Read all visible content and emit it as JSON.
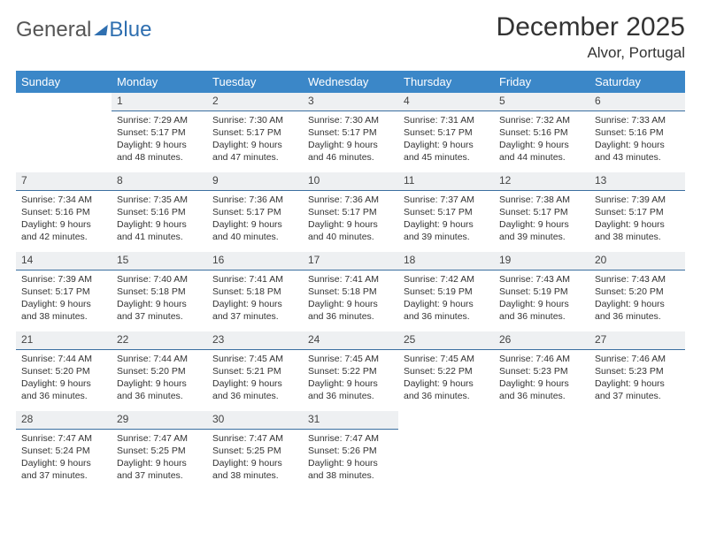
{
  "brand": {
    "part1": "General",
    "part2": "Blue"
  },
  "title": "December 2025",
  "location": "Alvor, Portugal",
  "colors": {
    "header_bg": "#3b87c8",
    "header_text": "#ffffff",
    "daynum_bg": "#eef0f2",
    "daynum_border": "#3b6fa0",
    "body_text": "#333333",
    "brand_gray": "#555555",
    "brand_blue": "#2f6fb0"
  },
  "weekdays": [
    "Sunday",
    "Monday",
    "Tuesday",
    "Wednesday",
    "Thursday",
    "Friday",
    "Saturday"
  ],
  "weeks": [
    {
      "nums": [
        "",
        "1",
        "2",
        "3",
        "4",
        "5",
        "6"
      ],
      "cells": [
        "",
        "Sunrise: 7:29 AM\nSunset: 5:17 PM\nDaylight: 9 hours and 48 minutes.",
        "Sunrise: 7:30 AM\nSunset: 5:17 PM\nDaylight: 9 hours and 47 minutes.",
        "Sunrise: 7:30 AM\nSunset: 5:17 PM\nDaylight: 9 hours and 46 minutes.",
        "Sunrise: 7:31 AM\nSunset: 5:17 PM\nDaylight: 9 hours and 45 minutes.",
        "Sunrise: 7:32 AM\nSunset: 5:16 PM\nDaylight: 9 hours and 44 minutes.",
        "Sunrise: 7:33 AM\nSunset: 5:16 PM\nDaylight: 9 hours and 43 minutes."
      ]
    },
    {
      "nums": [
        "7",
        "8",
        "9",
        "10",
        "11",
        "12",
        "13"
      ],
      "cells": [
        "Sunrise: 7:34 AM\nSunset: 5:16 PM\nDaylight: 9 hours and 42 minutes.",
        "Sunrise: 7:35 AM\nSunset: 5:16 PM\nDaylight: 9 hours and 41 minutes.",
        "Sunrise: 7:36 AM\nSunset: 5:17 PM\nDaylight: 9 hours and 40 minutes.",
        "Sunrise: 7:36 AM\nSunset: 5:17 PM\nDaylight: 9 hours and 40 minutes.",
        "Sunrise: 7:37 AM\nSunset: 5:17 PM\nDaylight: 9 hours and 39 minutes.",
        "Sunrise: 7:38 AM\nSunset: 5:17 PM\nDaylight: 9 hours and 39 minutes.",
        "Sunrise: 7:39 AM\nSunset: 5:17 PM\nDaylight: 9 hours and 38 minutes."
      ]
    },
    {
      "nums": [
        "14",
        "15",
        "16",
        "17",
        "18",
        "19",
        "20"
      ],
      "cells": [
        "Sunrise: 7:39 AM\nSunset: 5:17 PM\nDaylight: 9 hours and 38 minutes.",
        "Sunrise: 7:40 AM\nSunset: 5:18 PM\nDaylight: 9 hours and 37 minutes.",
        "Sunrise: 7:41 AM\nSunset: 5:18 PM\nDaylight: 9 hours and 37 minutes.",
        "Sunrise: 7:41 AM\nSunset: 5:18 PM\nDaylight: 9 hours and 36 minutes.",
        "Sunrise: 7:42 AM\nSunset: 5:19 PM\nDaylight: 9 hours and 36 minutes.",
        "Sunrise: 7:43 AM\nSunset: 5:19 PM\nDaylight: 9 hours and 36 minutes.",
        "Sunrise: 7:43 AM\nSunset: 5:20 PM\nDaylight: 9 hours and 36 minutes."
      ]
    },
    {
      "nums": [
        "21",
        "22",
        "23",
        "24",
        "25",
        "26",
        "27"
      ],
      "cells": [
        "Sunrise: 7:44 AM\nSunset: 5:20 PM\nDaylight: 9 hours and 36 minutes.",
        "Sunrise: 7:44 AM\nSunset: 5:20 PM\nDaylight: 9 hours and 36 minutes.",
        "Sunrise: 7:45 AM\nSunset: 5:21 PM\nDaylight: 9 hours and 36 minutes.",
        "Sunrise: 7:45 AM\nSunset: 5:22 PM\nDaylight: 9 hours and 36 minutes.",
        "Sunrise: 7:45 AM\nSunset: 5:22 PM\nDaylight: 9 hours and 36 minutes.",
        "Sunrise: 7:46 AM\nSunset: 5:23 PM\nDaylight: 9 hours and 36 minutes.",
        "Sunrise: 7:46 AM\nSunset: 5:23 PM\nDaylight: 9 hours and 37 minutes."
      ]
    },
    {
      "nums": [
        "28",
        "29",
        "30",
        "31",
        "",
        "",
        ""
      ],
      "cells": [
        "Sunrise: 7:47 AM\nSunset: 5:24 PM\nDaylight: 9 hours and 37 minutes.",
        "Sunrise: 7:47 AM\nSunset: 5:25 PM\nDaylight: 9 hours and 37 minutes.",
        "Sunrise: 7:47 AM\nSunset: 5:25 PM\nDaylight: 9 hours and 38 minutes.",
        "Sunrise: 7:47 AM\nSunset: 5:26 PM\nDaylight: 9 hours and 38 minutes.",
        "",
        "",
        ""
      ]
    }
  ]
}
